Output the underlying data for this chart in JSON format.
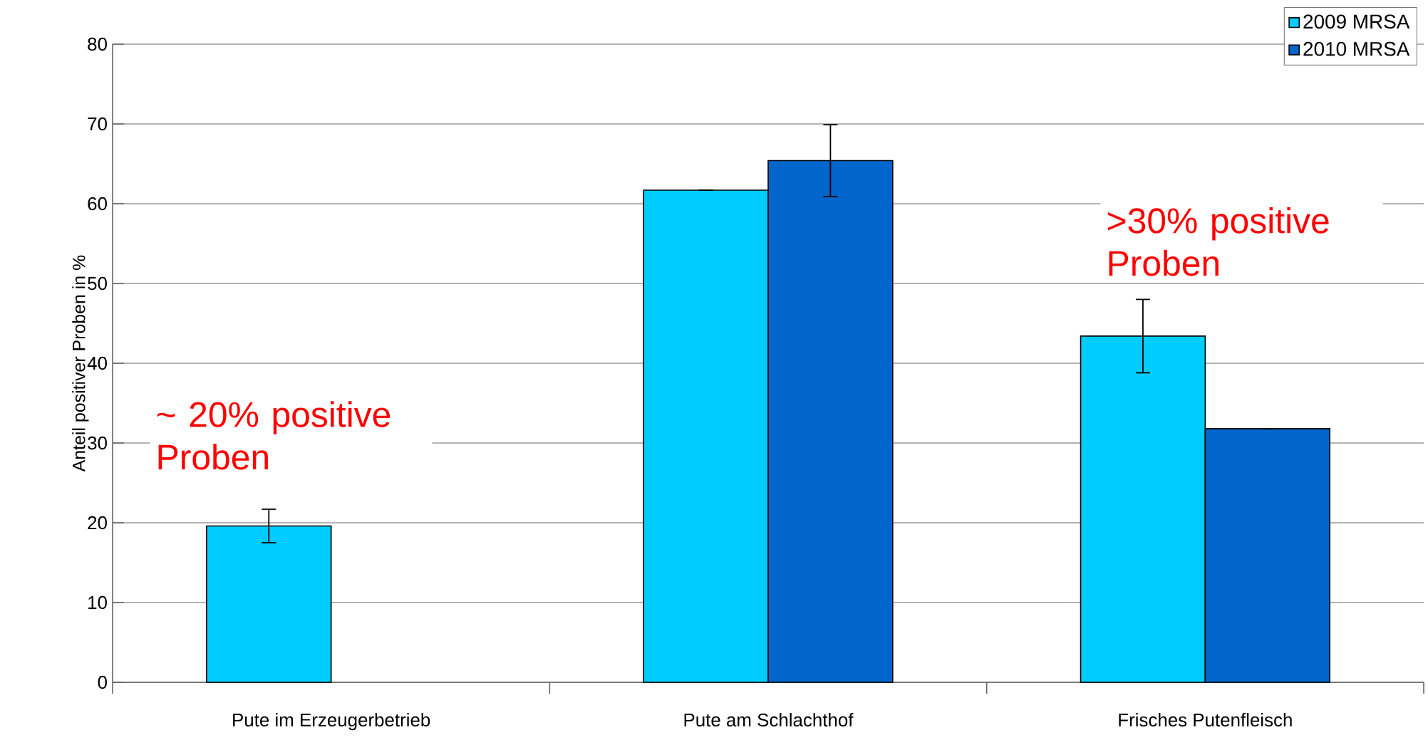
{
  "chart_data": {
    "type": "bar",
    "ylabel": "Anteil positiver Proben in %",
    "categories": [
      "Pute im Erzeugerbetrieb",
      "Pute am Schlachthof",
      "Frisches Putenfleisch"
    ],
    "series": [
      {
        "name": "2009 MRSA",
        "color": "#00ccff",
        "values": [
          19.6,
          61.7,
          43.4
        ],
        "errors": [
          2.1,
          null,
          4.6
        ]
      },
      {
        "name": "2010 MRSA",
        "color": "#0066cc",
        "values": [
          null,
          65.4,
          31.8
        ],
        "errors": [
          null,
          4.5,
          null
        ]
      }
    ],
    "ylim": [
      0,
      80
    ],
    "yticks": [
      0,
      10,
      20,
      30,
      40,
      50,
      60,
      70,
      80
    ],
    "grid": "y",
    "legend": "top right",
    "annotations": [
      "~ 20% positive Proben",
      ">30% positive Proben"
    ]
  }
}
